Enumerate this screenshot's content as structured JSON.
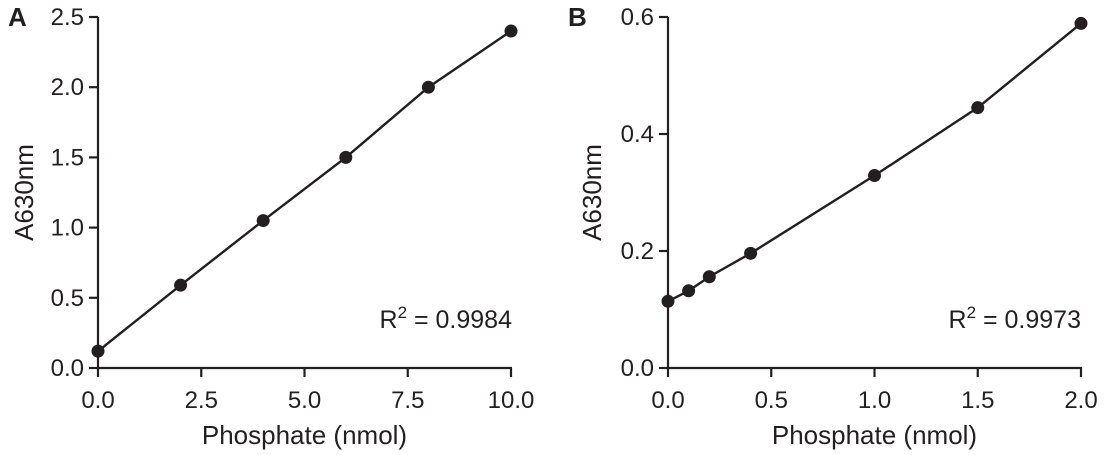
{
  "chart_data": [
    {
      "type": "scatter",
      "panel_label": "A",
      "xlabel": "Phosphate (nmol)",
      "ylabel": "A630nm",
      "xlim": [
        0,
        10
      ],
      "ylim": [
        0,
        2.5
      ],
      "xticks": [
        "0.0",
        "2.5",
        "5.0",
        "7.5",
        "10.0"
      ],
      "yticks": [
        "0.0",
        "0.5",
        "1.0",
        "1.5",
        "2.0",
        "2.5"
      ],
      "grid": false,
      "line": "connected",
      "x": [
        0,
        2,
        4,
        6,
        8,
        10
      ],
      "y": [
        0.12,
        0.59,
        1.05,
        1.5,
        2.0,
        2.4
      ],
      "annotation": {
        "base": "R",
        "sup": "2",
        "rest": " = 0.9984"
      }
    },
    {
      "type": "scatter",
      "panel_label": "B",
      "xlabel": "Phosphate (nmol)",
      "ylabel": "A630nm",
      "xlim": [
        0,
        2
      ],
      "ylim": [
        0,
        0.6
      ],
      "xticks": [
        "0.0",
        "0.5",
        "1.0",
        "1.5",
        "2.0"
      ],
      "yticks": [
        "0.0",
        "0.2",
        "0.4",
        "0.6"
      ],
      "grid": false,
      "line": "connected",
      "x": [
        0,
        0.1,
        0.2,
        0.4,
        1.0,
        1.5,
        2.0
      ],
      "y": [
        0.114,
        0.132,
        0.156,
        0.196,
        0.329,
        0.445,
        0.589
      ],
      "annotation": {
        "base": "R",
        "sup": "2",
        "rest": " = 0.9973"
      }
    }
  ],
  "colors": {
    "ink": "#231f20",
    "background": "#ffffff"
  }
}
